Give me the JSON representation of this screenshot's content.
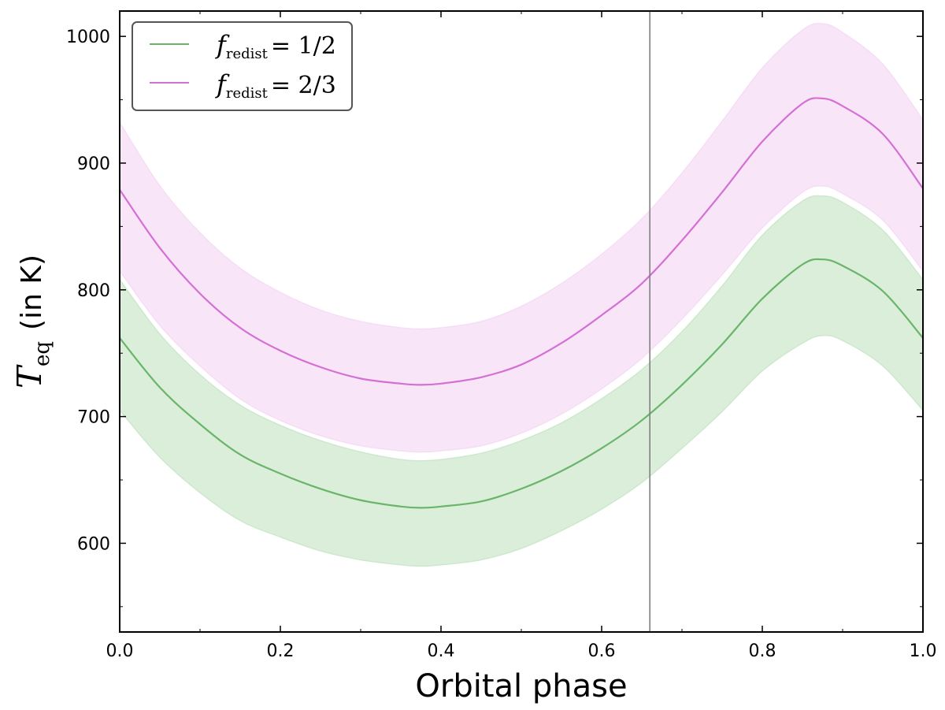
{
  "chart_data": {
    "type": "line",
    "title": "",
    "xlabel": "Orbital phase",
    "ylabel": {
      "symbol": "T",
      "subscript": "eq",
      "suffix": "(in K)"
    },
    "xlim": [
      0.0,
      1.0
    ],
    "ylim": [
      530,
      1020
    ],
    "xticks": [
      0.0,
      0.2,
      0.4,
      0.6,
      0.8,
      1.0
    ],
    "xtick_labels": [
      "0.0",
      "0.2",
      "0.4",
      "0.6",
      "0.8",
      "1.0"
    ],
    "yticks": [
      600,
      700,
      800,
      900,
      1000
    ],
    "ytick_labels": [
      "600",
      "700",
      "800",
      "900",
      "1000"
    ],
    "grid": false,
    "legend_position": "top-left",
    "vline": {
      "x": 0.66,
      "color": "#808080"
    },
    "series": [
      {
        "name": "f_redist = 1/2",
        "legend": {
          "symbol": "f",
          "subscript": "redist",
          "value": "= 1/2"
        },
        "color": "#6ab56a",
        "band_color": "#cde8cd",
        "x": [
          0.0,
          0.05,
          0.1,
          0.15,
          0.2,
          0.25,
          0.3,
          0.35,
          0.375,
          0.4,
          0.45,
          0.5,
          0.55,
          0.6,
          0.65,
          0.7,
          0.75,
          0.8,
          0.85,
          0.875,
          0.9,
          0.95,
          1.0
        ],
        "y": [
          762,
          723,
          694,
          670,
          655,
          643,
          634,
          629,
          628,
          629,
          633,
          643,
          657,
          675,
          697,
          725,
          757,
          793,
          820,
          824,
          819,
          799,
          762
        ],
        "lower": [
          705,
          668,
          640,
          618,
          605,
          594,
          587,
          583,
          582,
          583,
          587,
          596,
          610,
          627,
          648,
          675,
          704,
          736,
          758,
          764,
          760,
          740,
          705
        ],
        "upper": [
          808,
          765,
          733,
          709,
          693,
          681,
          672,
          666,
          665,
          666,
          671,
          681,
          695,
          714,
          737,
          767,
          803,
          843,
          870,
          874,
          869,
          847,
          808
        ]
      },
      {
        "name": "f_redist = 2/3",
        "legend": {
          "symbol": "f",
          "subscript": "redist",
          "value": "= 2/3"
        },
        "color": "#d470d4",
        "band_color": "#f6ddf6",
        "x": [
          0.0,
          0.05,
          0.1,
          0.15,
          0.2,
          0.25,
          0.3,
          0.35,
          0.375,
          0.4,
          0.45,
          0.5,
          0.55,
          0.6,
          0.65,
          0.7,
          0.75,
          0.8,
          0.85,
          0.875,
          0.9,
          0.95,
          1.0
        ],
        "y": [
          879,
          833,
          797,
          770,
          752,
          739,
          730,
          726,
          725,
          726,
          731,
          741,
          758,
          780,
          805,
          839,
          877,
          917,
          947,
          951,
          945,
          923,
          880
        ],
        "lower": [
          815,
          772,
          740,
          714,
          697,
          685,
          677,
          673,
          672,
          673,
          677,
          687,
          702,
          722,
          746,
          777,
          812,
          849,
          877,
          882,
          876,
          855,
          815
        ],
        "upper": [
          932,
          882,
          845,
          817,
          798,
          784,
          775,
          770,
          769,
          770,
          775,
          787,
          805,
          828,
          856,
          892,
          933,
          975,
          1005,
          1010,
          1003,
          978,
          934
        ]
      }
    ]
  }
}
